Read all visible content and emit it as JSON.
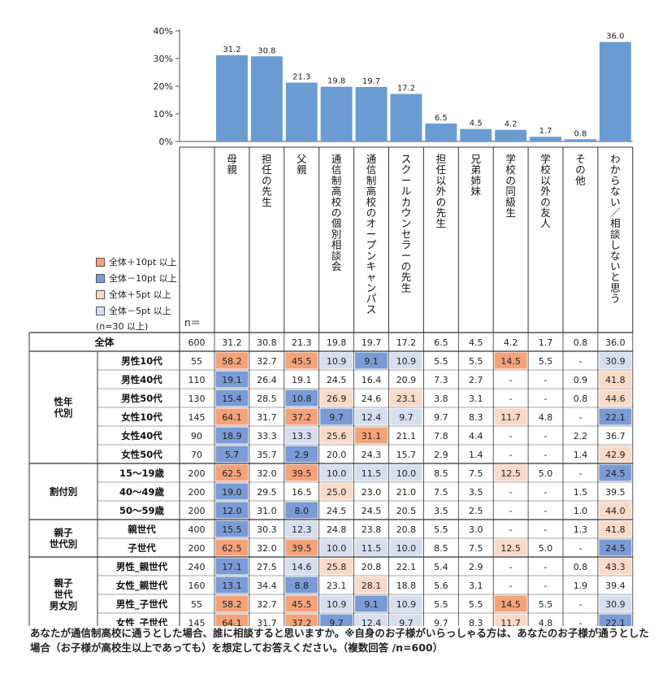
{
  "chart_data": {
    "type": "bar",
    "title": "",
    "xlabel": "",
    "ylabel": "",
    "ylim": [
      0,
      40
    ],
    "y_ticks": [
      "40%",
      "30%",
      "20%",
      "10%",
      "0%"
    ],
    "grid": false,
    "categories": [
      "母親",
      "担任の先生",
      "父親",
      "通信制高校の個別相談会",
      "通信制高校のオープンキャンパス",
      "スクールカウンセラーの先生",
      "担任以外の先生",
      "兄弟姉妹",
      "学校の同級生",
      "学校以外の友人",
      "その他",
      "わからない／相談しないと思う"
    ],
    "values": [
      31.2,
      30.8,
      21.3,
      19.8,
      19.7,
      17.2,
      6.5,
      4.5,
      4.2,
      1.7,
      0.8,
      36.0
    ],
    "data_labels": [
      "31.2",
      "30.8",
      "21.3",
      "19.8",
      "19.7",
      "17.2",
      "6.5",
      "4.5",
      "4.2",
      "1.7",
      "0.8",
      "36.0"
    ],
    "bar_color": "#6a9bd2"
  },
  "legend": {
    "items": [
      {
        "label": "全体＋10pt 以上",
        "color": "#f4a27a"
      },
      {
        "label": "全体－10pt 以上",
        "color": "#7a9bd6"
      },
      {
        "label": "全体＋5pt 以上",
        "color": "#fbd9c8"
      },
      {
        "label": "全体－5pt 以上",
        "color": "#d6deef"
      }
    ],
    "note": "(n=30 以上)"
  },
  "n_header": "n＝",
  "table": {
    "total": {
      "label": "全体",
      "n": "600",
      "cells": [
        "31.2",
        "30.8",
        "21.3",
        "19.8",
        "19.7",
        "17.2",
        "6.5",
        "4.5",
        "4.2",
        "1.7",
        "0.8",
        "36.0"
      ]
    },
    "groups": [
      {
        "label": "性年\n代別",
        "rows": [
          {
            "label": "男性10代",
            "n": "55",
            "cells": [
              "58.2",
              "32.7",
              "45.5",
              "10.9",
              "9.1",
              "10.9",
              "5.5",
              "5.5",
              "14.5",
              "5.5",
              "-",
              "30.9"
            ],
            "hl": [
              "P10",
              "",
              "P10",
              "M5",
              "M10",
              "M5",
              "",
              "",
              "P10",
              "",
              "",
              "M5"
            ]
          },
          {
            "label": "男性40代",
            "n": "110",
            "cells": [
              "19.1",
              "26.4",
              "19.1",
              "24.5",
              "16.4",
              "20.9",
              "7.3",
              "2.7",
              "-",
              "-",
              "0.9",
              "41.8"
            ],
            "hl": [
              "M10",
              "",
              "",
              "",
              "",
              "",
              "",
              "",
              "",
              "",
              "",
              "P5"
            ]
          },
          {
            "label": "男性50代",
            "n": "130",
            "cells": [
              "15.4",
              "28.5",
              "10.8",
              "26.9",
              "24.6",
              "23.1",
              "3.8",
              "3.1",
              "-",
              "-",
              "0.8",
              "44.6"
            ],
            "hl": [
              "M10",
              "",
              "M10",
              "P5",
              "",
              "P5",
              "",
              "",
              "",
              "",
              "",
              "P5"
            ]
          },
          {
            "label": "女性10代",
            "n": "145",
            "cells": [
              "64.1",
              "31.7",
              "37.2",
              "9.7",
              "12.4",
              "9.7",
              "9.7",
              "8.3",
              "11.7",
              "4.8",
              "-",
              "22.1"
            ],
            "hl": [
              "P10",
              "",
              "P10",
              "M10",
              "M5",
              "M5",
              "",
              "",
              "P5",
              "",
              "",
              "M10"
            ]
          },
          {
            "label": "女性40代",
            "n": "90",
            "cells": [
              "18.9",
              "33.3",
              "13.3",
              "25.6",
              "31.1",
              "21.1",
              "7.8",
              "4.4",
              "-",
              "-",
              "2.2",
              "36.7"
            ],
            "hl": [
              "M10",
              "",
              "M5",
              "P5",
              "P10",
              "",
              "",
              "",
              "",
              "",
              "",
              ""
            ]
          },
          {
            "label": "女性50代",
            "n": "70",
            "cells": [
              "5.7",
              "35.7",
              "2.9",
              "20.0",
              "24.3",
              "15.7",
              "2.9",
              "1.4",
              "-",
              "-",
              "1.4",
              "42.9"
            ],
            "hl": [
              "M10",
              "",
              "M10",
              "",
              "",
              "",
              "",
              "",
              "",
              "",
              "",
              "P5"
            ]
          }
        ]
      },
      {
        "label": "割付別",
        "rows": [
          {
            "label": "15～19歳",
            "n": "200",
            "cells": [
              "62.5",
              "32.0",
              "39.5",
              "10.0",
              "11.5",
              "10.0",
              "8.5",
              "7.5",
              "12.5",
              "5.0",
              "-",
              "24.5"
            ],
            "hl": [
              "P10",
              "",
              "P10",
              "M5",
              "M5",
              "M5",
              "",
              "",
              "P5",
              "",
              "",
              "M10"
            ]
          },
          {
            "label": "40～49歳",
            "n": "200",
            "cells": [
              "19.0",
              "29.5",
              "16.5",
              "25.0",
              "23.0",
              "21.0",
              "7.5",
              "3.5",
              "-",
              "-",
              "1.5",
              "39.5"
            ],
            "hl": [
              "M10",
              "",
              "",
              "P5",
              "",
              "",
              "",
              "",
              "",
              "",
              "",
              ""
            ]
          },
          {
            "label": "50～59歳",
            "n": "200",
            "cells": [
              "12.0",
              "31.0",
              "8.0",
              "24.5",
              "24.5",
              "20.5",
              "3.5",
              "2.5",
              "-",
              "-",
              "1.0",
              "44.0"
            ],
            "hl": [
              "M10",
              "",
              "M10",
              "",
              "",
              "",
              "",
              "",
              "",
              "",
              "",
              "P5"
            ]
          }
        ]
      },
      {
        "label": "親子\n世代別",
        "rows": [
          {
            "label": "親世代",
            "n": "400",
            "cells": [
              "15.5",
              "30.3",
              "12.3",
              "24.8",
              "23.8",
              "20.8",
              "5.5",
              "3.0",
              "-",
              "-",
              "1.3",
              "41.8"
            ],
            "hl": [
              "M10",
              "",
              "M5",
              "",
              "",
              "",
              "",
              "",
              "",
              "",
              "",
              "P5"
            ]
          },
          {
            "label": "子世代",
            "n": "200",
            "cells": [
              "62.5",
              "32.0",
              "39.5",
              "10.0",
              "11.5",
              "10.0",
              "8.5",
              "7.5",
              "12.5",
              "5.0",
              "-",
              "24.5"
            ],
            "hl": [
              "P10",
              "",
              "P10",
              "M5",
              "M5",
              "M5",
              "",
              "",
              "P5",
              "",
              "",
              "M10"
            ]
          }
        ]
      },
      {
        "label": "親子\n世代\n男女別",
        "rows": [
          {
            "label": "男性_親世代",
            "n": "240",
            "cells": [
              "17.1",
              "27.5",
              "14.6",
              "25.8",
              "20.8",
              "22.1",
              "5.4",
              "2.9",
              "-",
              "-",
              "0.8",
              "43.3"
            ],
            "hl": [
              "M10",
              "",
              "M5",
              "P5",
              "",
              "",
              "",
              "",
              "",
              "",
              "",
              "P5"
            ]
          },
          {
            "label": "女性_親世代",
            "n": "160",
            "cells": [
              "13.1",
              "34.4",
              "8.8",
              "23.1",
              "28.1",
              "18.8",
              "5.6",
              "3.1",
              "-",
              "-",
              "1.9",
              "39.4"
            ],
            "hl": [
              "M10",
              "",
              "M10",
              "",
              "P5",
              "",
              "",
              "",
              "",
              "",
              "",
              ""
            ]
          },
          {
            "label": "男性_子世代",
            "n": "55",
            "cells": [
              "58.2",
              "32.7",
              "45.5",
              "10.9",
              "9.1",
              "10.9",
              "5.5",
              "5.5",
              "14.5",
              "5.5",
              "-",
              "30.9"
            ],
            "hl": [
              "P10",
              "",
              "P10",
              "M5",
              "M10",
              "M5",
              "",
              "",
              "P10",
              "",
              "",
              "M5"
            ]
          },
          {
            "label": "女性_子世代",
            "n": "145",
            "cells": [
              "64.1",
              "31.7",
              "37.2",
              "9.7",
              "12.4",
              "9.7",
              "9.7",
              "8.3",
              "11.7",
              "4.8",
              "-",
              "22.1"
            ],
            "hl": [
              "P10",
              "",
              "P10",
              "M10",
              "M5",
              "M5",
              "",
              "",
              "P5",
              "",
              "",
              "M10"
            ]
          }
        ]
      }
    ]
  },
  "caption": "あなたが通信制高校に通うとした場合、誰に相談すると思いますか。※自身のお子様がいらっしゃる方は、あなたのお子様が通うとした場合（お子様が高校生以上であっても）を想定してお答えください。（複数回答 /n=600）"
}
